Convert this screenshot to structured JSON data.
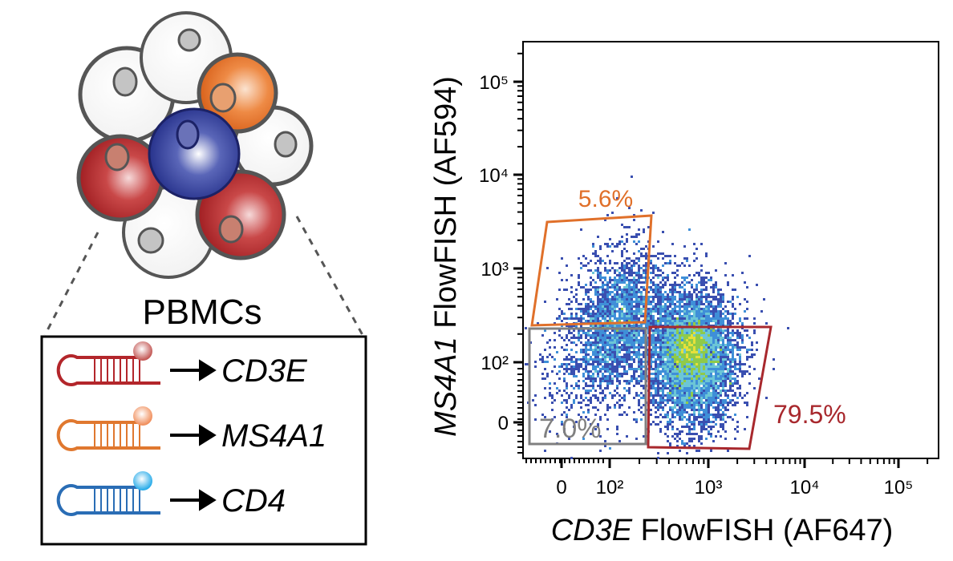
{
  "illustration": {
    "cells_label": "PBMCs",
    "probes": [
      {
        "target": "CD3E",
        "color": "#b3262b",
        "dot_color": "#c0504d"
      },
      {
        "target": "MS4A1",
        "color": "#e0782f",
        "dot_color": "#f08a55"
      },
      {
        "target": "CD4",
        "color": "#2a6db5",
        "dot_color": "#1fa8e8"
      }
    ],
    "arrow_icon": "right-arrow-icon"
  },
  "chart_data": {
    "type": "scatter",
    "subtype": "flow-cytometry-density",
    "title": "",
    "xlabel_italic": "CD3E",
    "xlabel_rest": " FlowFISH (AF647)",
    "ylabel_italic": "MS4A1",
    "ylabel_rest": " FlowFISH (AF594)",
    "x_scale": "biexponential",
    "y_scale": "biexponential",
    "x_ticks": [
      "0",
      "10²",
      "10³",
      "10⁴",
      "10⁵"
    ],
    "y_ticks": [
      "0",
      "10²",
      "10³",
      "10⁴",
      "10⁵"
    ],
    "populations": [
      {
        "description": "CD3E-low MS4A1-mid cluster",
        "x_center": 150,
        "y_center": 200
      },
      {
        "description": "CD3E+ cluster",
        "x_center": 700,
        "y_center": 130
      }
    ],
    "gates": [
      {
        "label": "5.6%",
        "color": "#e0702a",
        "x_range": [
          "<0",
          400
        ],
        "y_range": [
          250,
          3500
        ]
      },
      {
        "label": "7.0%",
        "color": "#808080",
        "x_range": [
          "<0",
          250
        ],
        "y_range": [
          "<0",
          220
        ]
      },
      {
        "label": "79.5%",
        "color": "#a8282d",
        "x_range": [
          280,
          4500
        ],
        "y_range": [
          "<0",
          230
        ]
      }
    ]
  }
}
